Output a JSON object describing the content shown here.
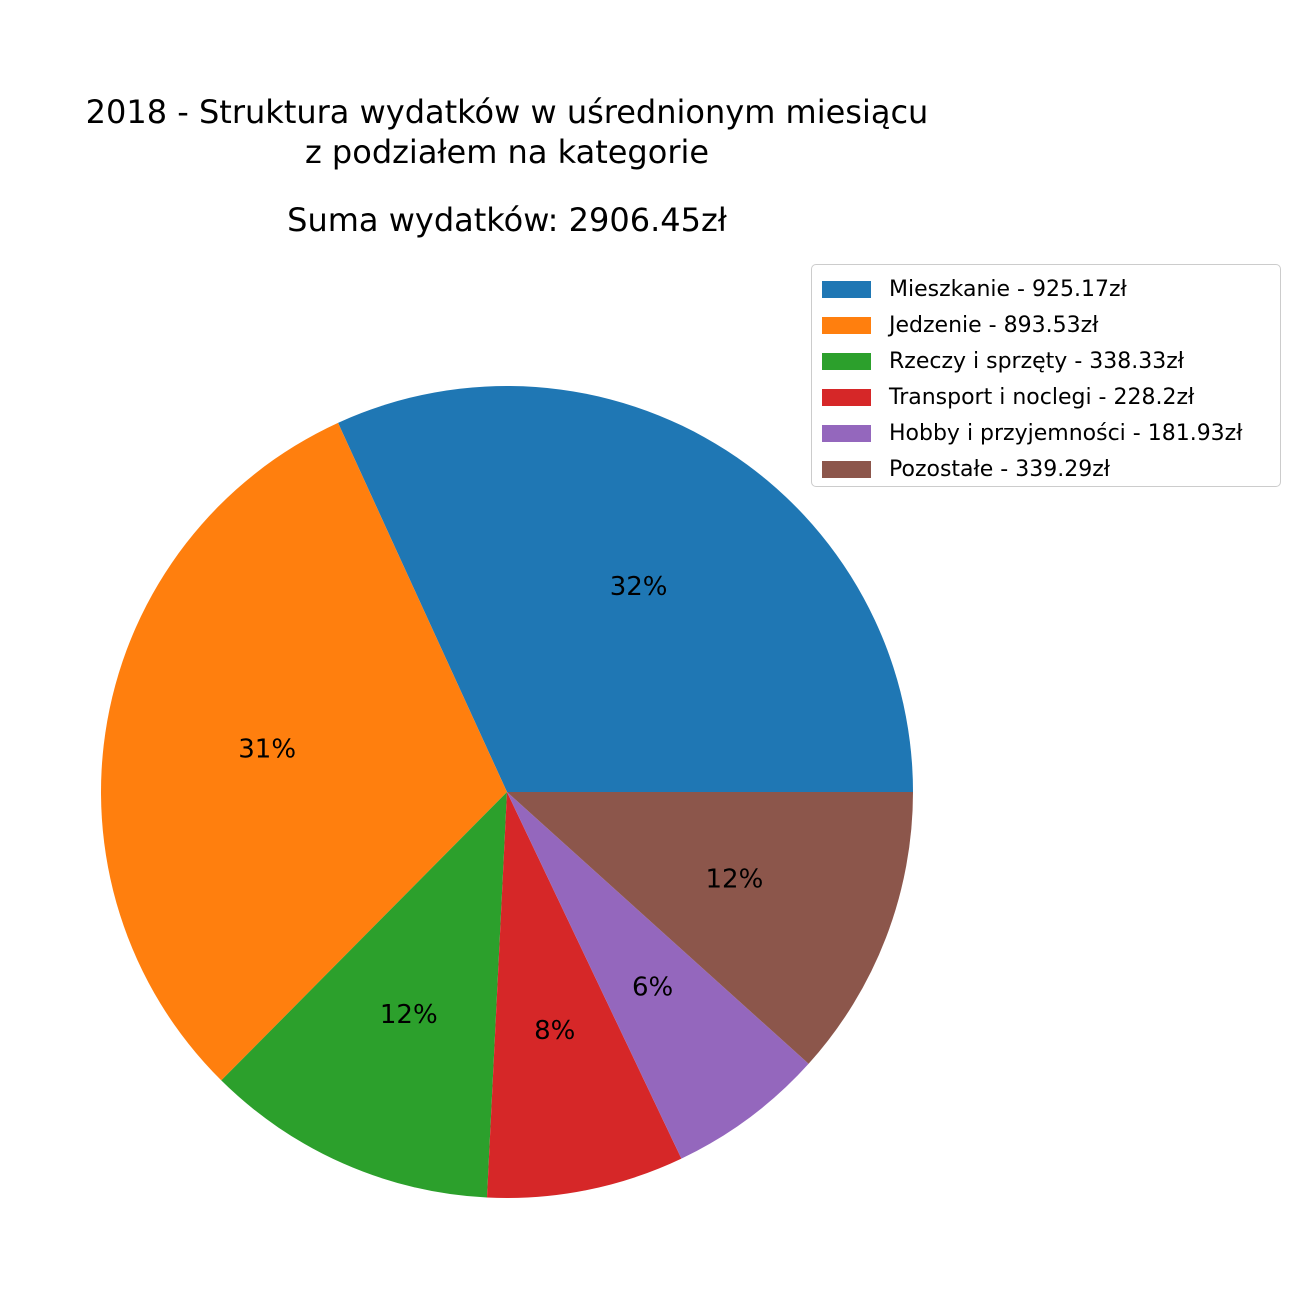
{
  "title_lines": [
    "2018 - Struktura wydatków w uśrednionym miesiącu",
    "z podziałem na kategorie"
  ],
  "subtitle": "Suma wydatków: 2906.45zł",
  "chart_data": {
    "type": "pie",
    "title": "2018 - Struktura wydatków w uśrednionym miesiącu z podziałem na kategorie",
    "subtitle": "Suma wydatków: 2906.45zł",
    "legend_position": "top-right",
    "slices": [
      {
        "label": "Mieszkanie - 925.17zł",
        "value": 925.17,
        "pct_label": "32%",
        "color": "#1f77b4"
      },
      {
        "label": "Jedzenie - 893.53zł",
        "value": 893.53,
        "pct_label": "31%",
        "color": "#ff7f0e"
      },
      {
        "label": "Rzeczy i sprzęty - 338.33zł",
        "value": 338.33,
        "pct_label": "12%",
        "color": "#2ca02c"
      },
      {
        "label": "Transport i noclegi - 228.2zł",
        "value": 228.2,
        "pct_label": "8%",
        "color": "#d62728"
      },
      {
        "label": "Hobby i przyjemności - 181.93zł",
        "value": 181.93,
        "pct_label": "6%",
        "color": "#9467bd"
      },
      {
        "label": "Pozostałe - 339.29zł",
        "value": 339.29,
        "pct_label": "12%",
        "color": "#8c564b"
      }
    ]
  }
}
